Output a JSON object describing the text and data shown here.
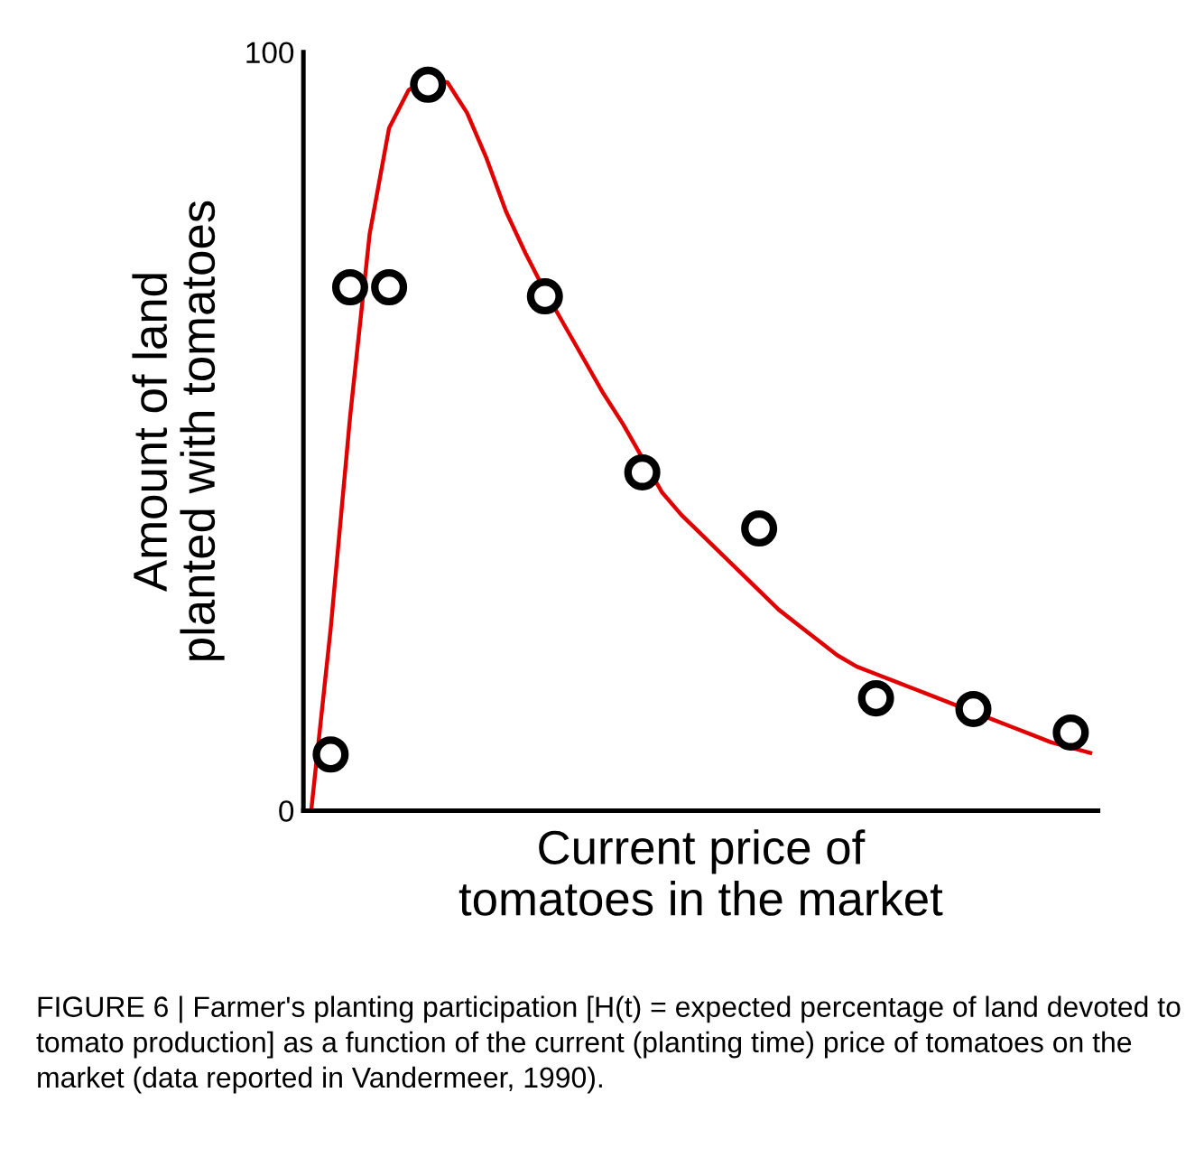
{
  "chart_data": {
    "type": "scatter",
    "xlabel": "Current price of tomatoes in the market",
    "ylabel": "Amount of land planted with tomatoes",
    "categories": [
      null,
      null,
      null,
      null,
      null,
      null,
      null,
      null,
      null,
      null,
      null,
      null,
      null,
      null,
      null,
      null,
      null,
      null,
      null,
      null,
      null,
      null,
      null,
      null,
      null,
      null,
      null,
      null,
      null,
      null,
      null,
      null,
      null,
      null,
      null,
      null,
      null,
      null,
      null,
      null,
      null
    ],
    "ylim": [
      0,
      100
    ],
    "yticks": [
      0,
      100
    ],
    "grid": false,
    "series": [
      {
        "marker": "circle",
        "color": "#000000",
        "values": [
          null,
          7.4,
          69,
          null,
          69,
          null,
          95.7,
          null,
          null,
          null,
          null,
          null,
          67.8,
          null,
          null,
          null,
          null,
          44.6,
          null,
          null,
          null,
          null,
          null,
          37.2,
          null,
          null,
          null,
          null,
          null,
          14.8,
          null,
          null,
          null,
          null,
          13.4,
          null,
          null,
          null,
          null,
          10.3,
          null
        ]
      },
      {
        "type": "line",
        "marker": "none",
        "line_style": "solid",
        "color": "#e00000",
        "values": [
          0,
          24,
          52,
          76,
          90,
          95,
          96.5,
          96,
          92,
          86,
          79,
          73.5,
          68.5,
          64,
          59.5,
          55,
          51,
          46.5,
          42,
          39,
          36.5,
          34,
          31.5,
          29,
          26.5,
          24.5,
          22.5,
          20.5,
          19,
          18,
          17,
          16,
          15,
          14,
          13,
          12,
          11,
          10,
          9,
          8.3,
          7.6
        ]
      }
    ],
    "annotations": [
      "FIGURE 6 | Farmer's planting participation [H(t) = expected percentage of land devoted to tomato production] as a function of the current (planting time) price of tomatoes on the market (data reported in Vandermeer, 1990)."
    ]
  }
}
